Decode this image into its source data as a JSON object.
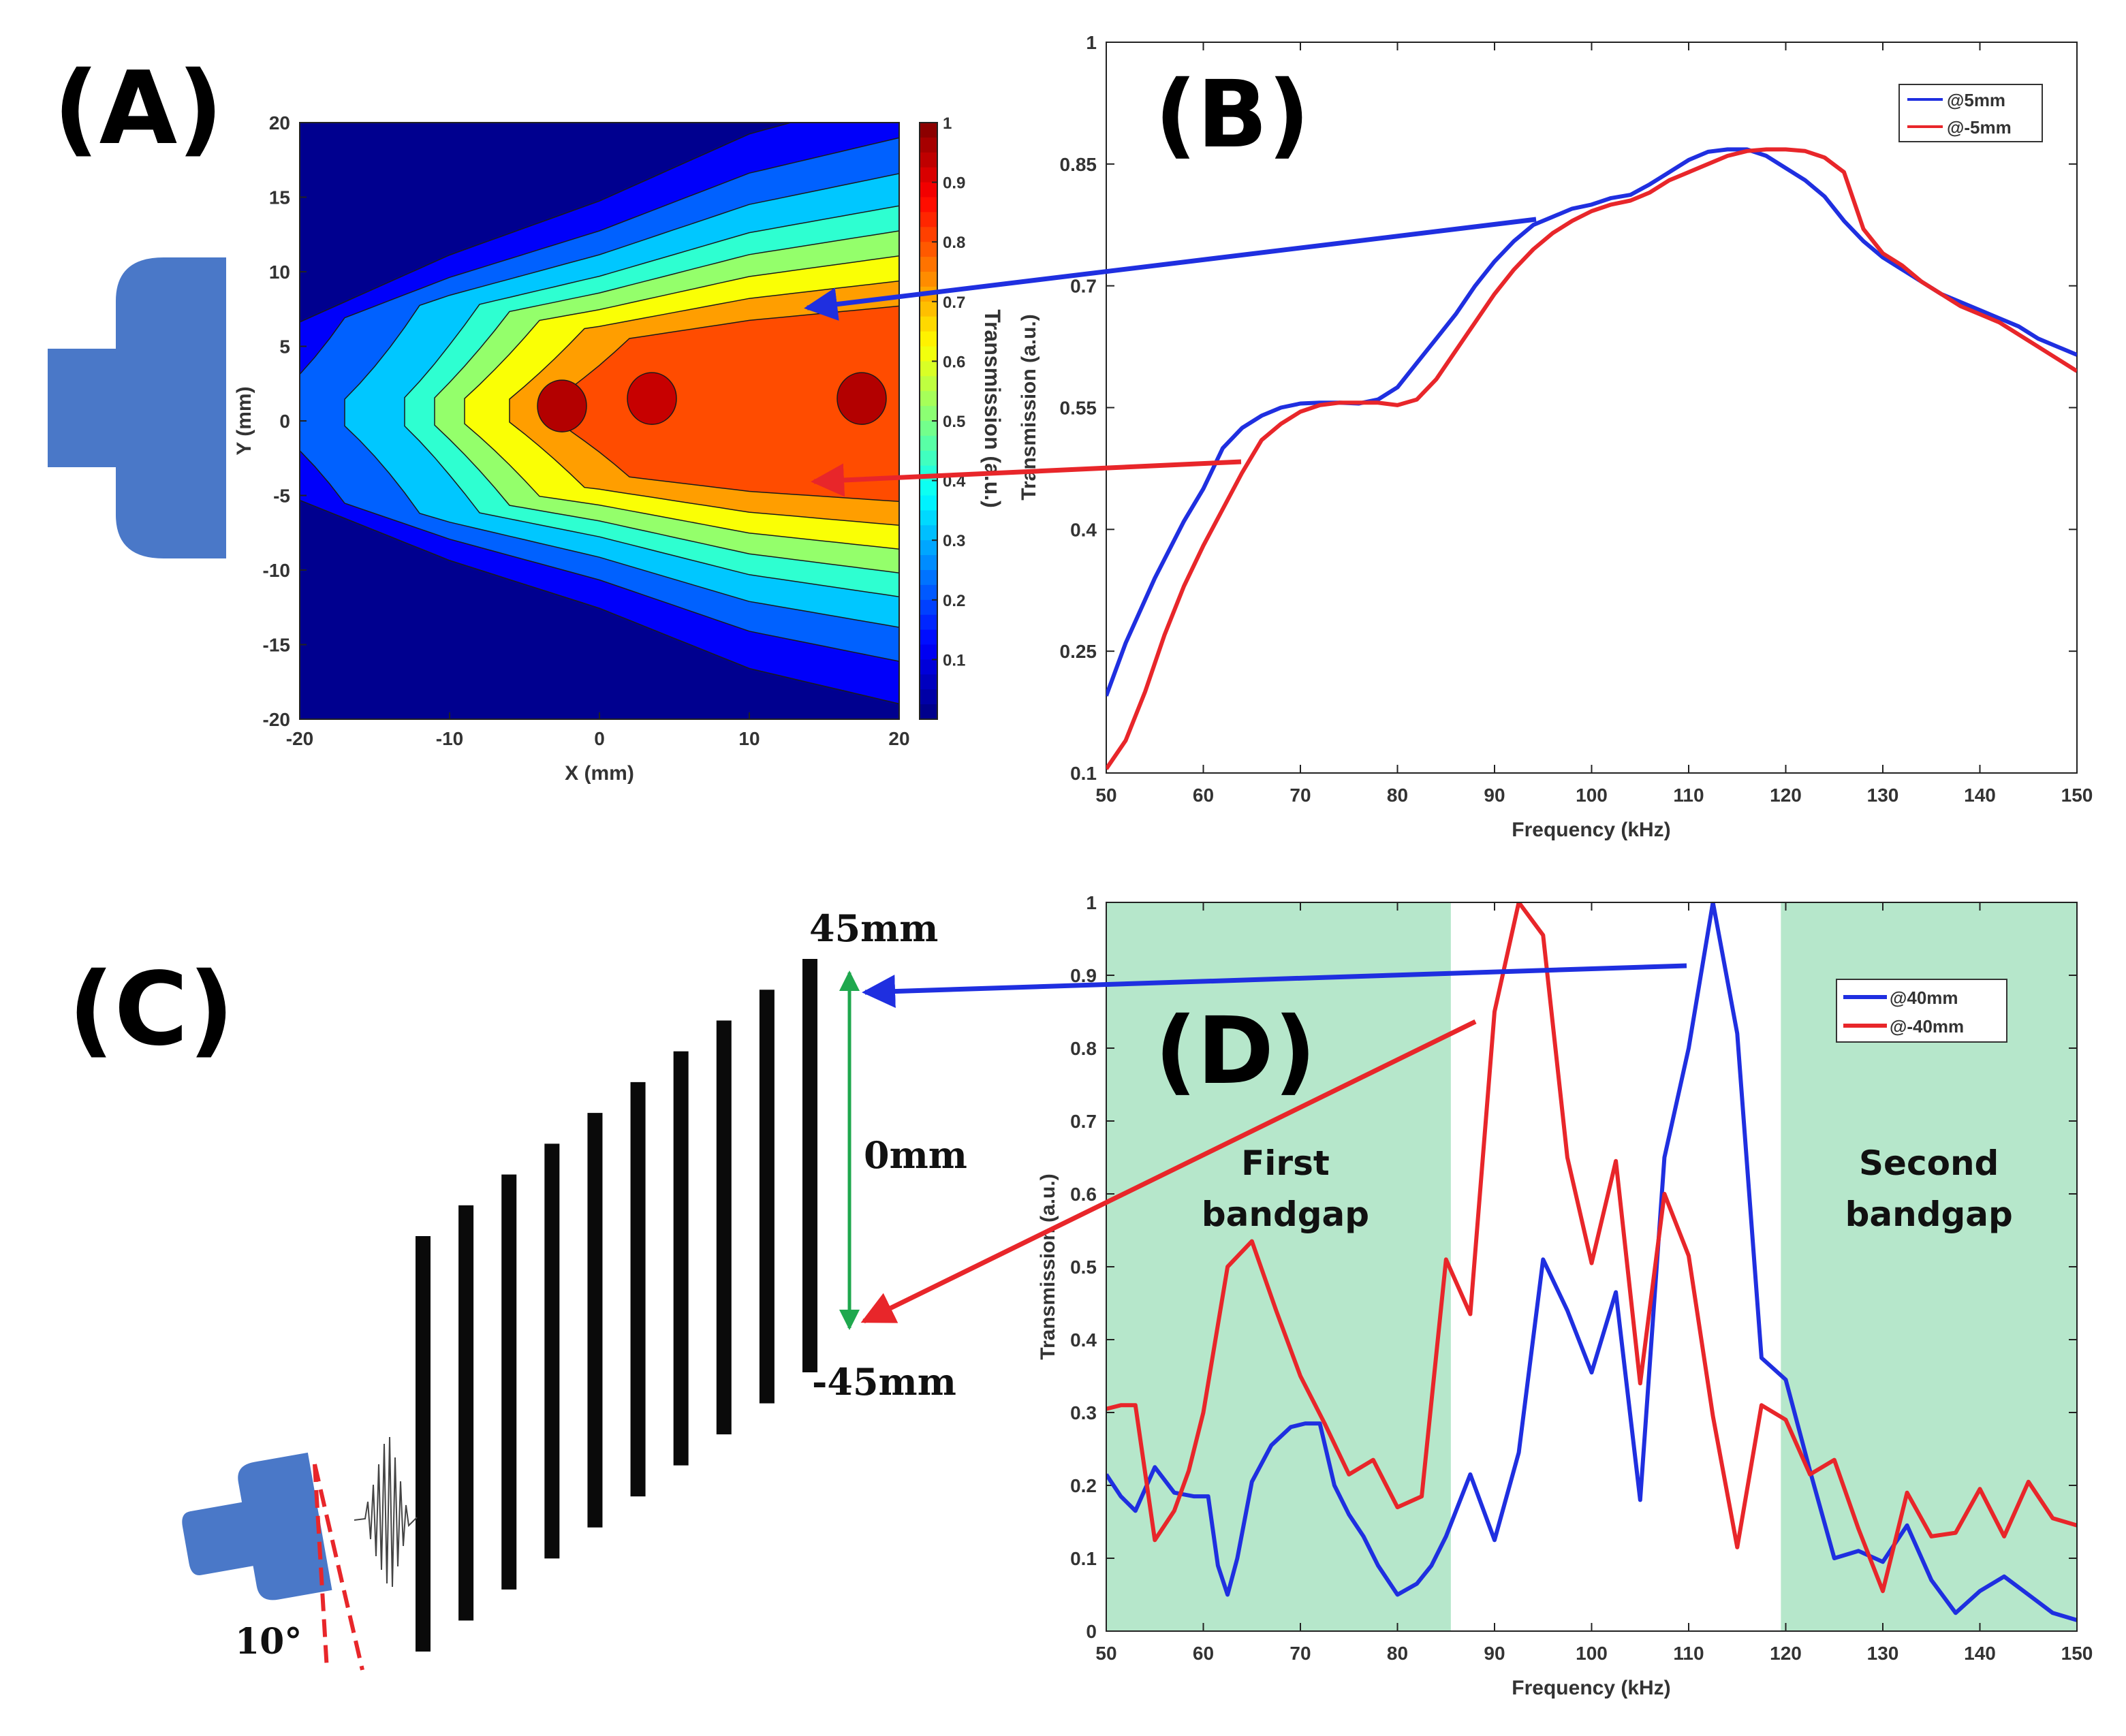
{
  "panels": {
    "a_label": "(A)",
    "b_label": "(B)",
    "c_label": "(C)",
    "d_label": "(D)"
  },
  "colors": {
    "blue": "#1f2fe0",
    "red": "#e8262a",
    "transducer": "#4a78c8",
    "band": "#b6e7cb",
    "green_arrow": "#1fa84e"
  },
  "diagram_c": {
    "top_label": "45mm",
    "mid_label": "0mm",
    "bottom_label": "-45mm",
    "angle_label": "10°",
    "bar_count": 10
  },
  "chart_data": [
    {
      "id": "A",
      "type": "heatmap",
      "subtype": "filled-contour",
      "xlabel": "X (mm)",
      "ylabel": "Y (mm)",
      "xlim": [
        -20,
        20
      ],
      "ylim": [
        -20,
        20
      ],
      "xticks": [
        "-20",
        "-10",
        "0",
        "10",
        "20"
      ],
      "yticks": [
        "20",
        "15",
        "10",
        "5",
        "0",
        "-5",
        "-10",
        "-15",
        "-20"
      ],
      "colorbar": {
        "label": "Transmission (a.u.)",
        "ticks": [
          "1",
          "0.9",
          "0.8",
          "0.7",
          "0.6",
          "0.5",
          "0.4",
          "0.3",
          "0.2",
          "0.1"
        ],
        "range": [
          0,
          1
        ]
      },
      "beam": {
        "half_width_at_x": [
          [
            -20,
            3.5
          ],
          [
            -10,
            6
          ],
          [
            0,
            8
          ],
          [
            10,
            10.5
          ],
          [
            20,
            12
          ]
        ],
        "hotspots": [
          {
            "x": -2.5,
            "y": 1,
            "value": 0.95
          },
          {
            "x": 3.5,
            "y": 1.5,
            "value": 0.93
          },
          {
            "x": 17.5,
            "y": 1.5,
            "value": 0.95
          }
        ],
        "peak_region_value": 0.85
      }
    },
    {
      "id": "B",
      "type": "line",
      "xlabel": "Frequency (kHz)",
      "ylabel": "Transmission (a.u.)",
      "xlim": [
        50,
        150
      ],
      "ylim": [
        0.1,
        1
      ],
      "xticks": [
        "50",
        "60",
        "70",
        "80",
        "90",
        "100",
        "110",
        "120",
        "130",
        "140",
        "150"
      ],
      "yticks": [
        "0.1",
        "0.25",
        "0.4",
        "0.55",
        "0.7",
        "0.85",
        "1"
      ],
      "legend": [
        "@5mm",
        "@-5mm"
      ],
      "series": [
        {
          "name": "@5mm",
          "color": "blue",
          "x": [
            50,
            52,
            55,
            58,
            60,
            62,
            64,
            66,
            68,
            70,
            72,
            74,
            76,
            78,
            80,
            82,
            84,
            86,
            88,
            90,
            92,
            94,
            96,
            98,
            100,
            102,
            104,
            106,
            108,
            110,
            112,
            114,
            116,
            118,
            120,
            122,
            124,
            126,
            128,
            130,
            132,
            134,
            136,
            138,
            140,
            142,
            144,
            146,
            148,
            150
          ],
          "y": [
            0.195,
            0.26,
            0.34,
            0.41,
            0.45,
            0.5,
            0.525,
            0.54,
            0.55,
            0.555,
            0.556,
            0.556,
            0.555,
            0.56,
            0.575,
            0.605,
            0.635,
            0.665,
            0.7,
            0.73,
            0.755,
            0.775,
            0.785,
            0.795,
            0.8,
            0.808,
            0.812,
            0.825,
            0.84,
            0.855,
            0.865,
            0.868,
            0.868,
            0.86,
            0.845,
            0.83,
            0.81,
            0.78,
            0.755,
            0.735,
            0.72,
            0.705,
            0.69,
            0.68,
            0.67,
            0.66,
            0.65,
            0.635,
            0.625,
            0.615
          ]
        },
        {
          "name": "@-5mm",
          "color": "red",
          "x": [
            50,
            52,
            54,
            56,
            58,
            60,
            62,
            64,
            66,
            68,
            70,
            72,
            74,
            76,
            78,
            80,
            82,
            84,
            86,
            88,
            90,
            92,
            94,
            96,
            98,
            100,
            102,
            104,
            106,
            108,
            110,
            112,
            114,
            116,
            118,
            120,
            122,
            124,
            126,
            128,
            130,
            132,
            134,
            136,
            138,
            140,
            142,
            144,
            146,
            148,
            150
          ],
          "y": [
            0.105,
            0.14,
            0.2,
            0.27,
            0.33,
            0.38,
            0.425,
            0.47,
            0.51,
            0.53,
            0.545,
            0.553,
            0.556,
            0.556,
            0.556,
            0.553,
            0.56,
            0.585,
            0.62,
            0.655,
            0.69,
            0.72,
            0.745,
            0.765,
            0.78,
            0.792,
            0.8,
            0.805,
            0.815,
            0.83,
            0.84,
            0.85,
            0.86,
            0.866,
            0.868,
            0.868,
            0.866,
            0.858,
            0.84,
            0.77,
            0.74,
            0.725,
            0.705,
            0.69,
            0.675,
            0.665,
            0.655,
            0.64,
            0.625,
            0.61,
            0.595
          ]
        }
      ]
    },
    {
      "id": "D",
      "type": "line",
      "xlabel": "Frequency (kHz)",
      "ylabel": "Transmission (a.u.)",
      "xlim": [
        50,
        150
      ],
      "ylim": [
        0,
        1
      ],
      "xticks": [
        "50",
        "60",
        "70",
        "80",
        "90",
        "100",
        "110",
        "120",
        "130",
        "140",
        "150"
      ],
      "yticks": [
        "0",
        "0.1",
        "0.2",
        "0.3",
        "0.4",
        "0.5",
        "0.6",
        "0.7",
        "0.8",
        "0.9",
        "1"
      ],
      "legend": [
        "@40mm",
        "@-40mm"
      ],
      "bands": [
        {
          "label": "First bandgap",
          "line1": "First",
          "line2": "bandgap",
          "x_start": 50,
          "x_end": 85.5
        },
        {
          "label": "Second bandgap",
          "line1": "Second",
          "line2": "bandgap",
          "x_start": 119.5,
          "x_end": 150
        }
      ],
      "series": [
        {
          "name": "@40mm",
          "color": "blue",
          "x": [
            50,
            51.5,
            53,
            55,
            57,
            59,
            60.5,
            61.5,
            62.5,
            63.5,
            65,
            67,
            69,
            70.5,
            72,
            73.5,
            75,
            76.5,
            78,
            80,
            82,
            83.5,
            85,
            87.5,
            90,
            92.5,
            95,
            97.5,
            100,
            102.5,
            105,
            107.5,
            110,
            112.5,
            115,
            117.5,
            120,
            122.5,
            125,
            127.5,
            130,
            132.5,
            135,
            137.5,
            140,
            142.5,
            145,
            147.5,
            150
          ],
          "y": [
            0.215,
            0.185,
            0.165,
            0.225,
            0.19,
            0.185,
            0.185,
            0.09,
            0.05,
            0.1,
            0.205,
            0.255,
            0.28,
            0.285,
            0.285,
            0.2,
            0.16,
            0.13,
            0.09,
            0.05,
            0.065,
            0.09,
            0.13,
            0.215,
            0.125,
            0.245,
            0.51,
            0.44,
            0.355,
            0.465,
            0.18,
            0.65,
            0.8,
            1.0,
            0.82,
            0.375,
            0.345,
            0.22,
            0.1,
            0.11,
            0.095,
            0.145,
            0.07,
            0.025,
            0.055,
            0.075,
            0.05,
            0.025,
            0.015
          ]
        },
        {
          "name": "@-40mm",
          "color": "red",
          "x": [
            50,
            51.5,
            53,
            55,
            57,
            58.5,
            60,
            62.5,
            65,
            67.5,
            70,
            72.5,
            75,
            77.5,
            80,
            82.5,
            85,
            87.5,
            90,
            92.5,
            95,
            97.5,
            100,
            102.5,
            105,
            107.5,
            110,
            112.5,
            115,
            117.5,
            120,
            122.5,
            125,
            127.5,
            130,
            132.5,
            135,
            137.5,
            140,
            142.5,
            145,
            147.5,
            150
          ],
          "y": [
            0.305,
            0.31,
            0.31,
            0.125,
            0.165,
            0.22,
            0.3,
            0.5,
            0.535,
            0.44,
            0.35,
            0.285,
            0.215,
            0.235,
            0.17,
            0.185,
            0.51,
            0.435,
            0.85,
            1.0,
            0.955,
            0.65,
            0.505,
            0.645,
            0.34,
            0.6,
            0.515,
            0.295,
            0.115,
            0.31,
            0.29,
            0.215,
            0.235,
            0.14,
            0.055,
            0.19,
            0.13,
            0.135,
            0.195,
            0.13,
            0.205,
            0.155,
            0.145
          ]
        }
      ]
    }
  ]
}
